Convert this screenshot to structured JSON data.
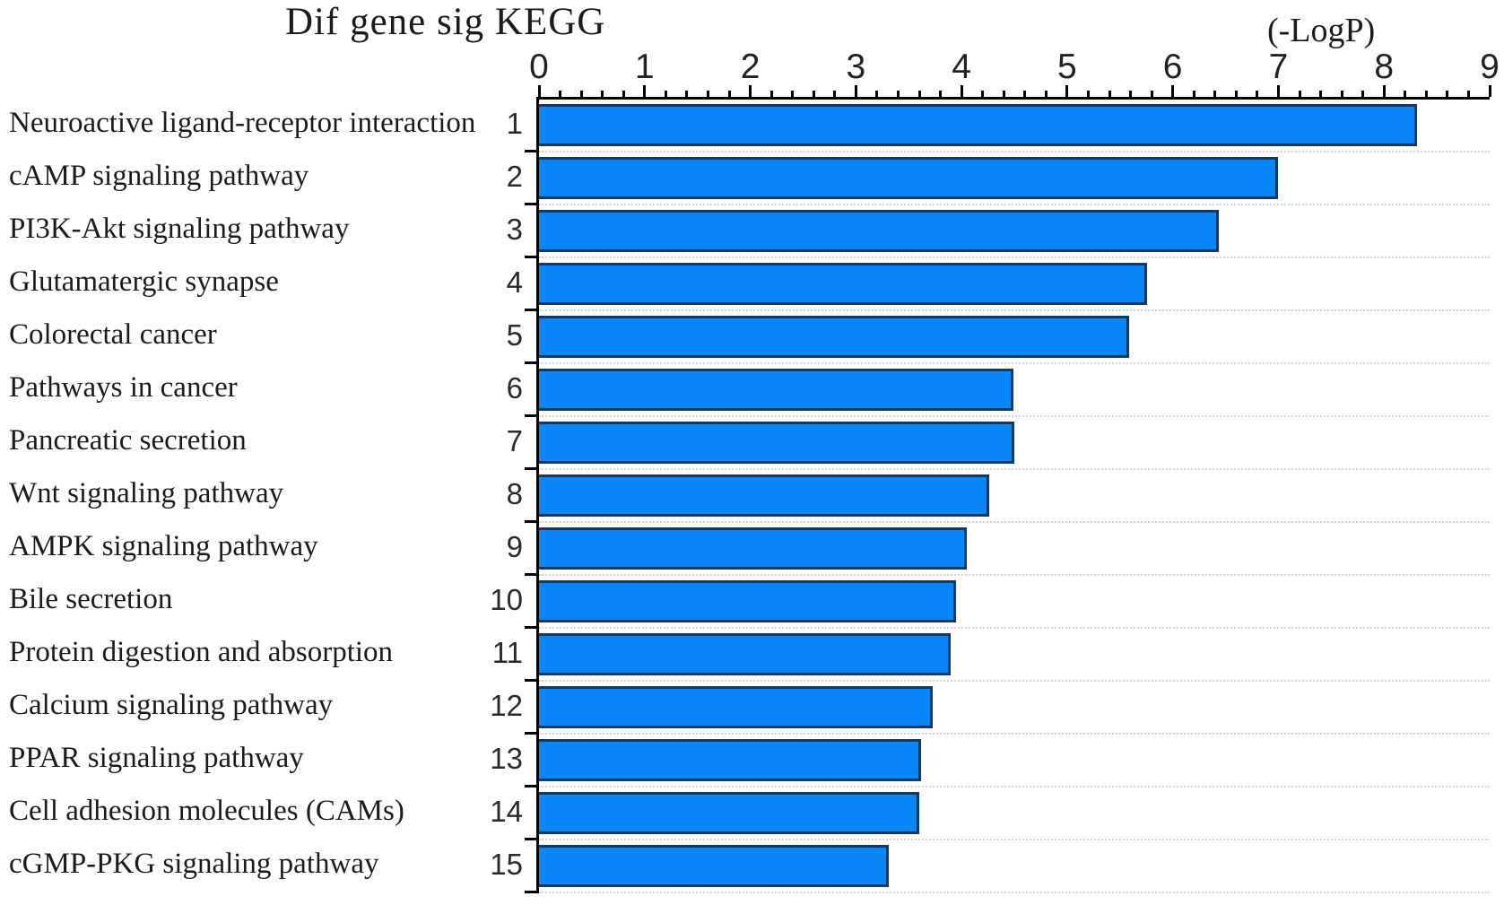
{
  "title": "Dif gene sig KEGG",
  "axis_unit_label": "(-LogP)",
  "chart_data": {
    "type": "bar",
    "orientation": "horizontal",
    "title": "Dif gene sig KEGG",
    "xlabel": "(-LogP)",
    "xlim": [
      0,
      9
    ],
    "x_major_tick_step": 1,
    "x_minor_tick_step": 0.2,
    "x_tick_labels": [
      "0",
      "1",
      "2",
      "3",
      "4",
      "5",
      "6",
      "7",
      "8",
      "9"
    ],
    "grid": "dotted horizontal row separators",
    "legend": "none",
    "bar_color": "#0986f8",
    "bar_border_color": "#15395e",
    "categories": [
      "Neuroactive ligand-receptor interaction",
      "cAMP signaling pathway",
      "PI3K-Akt signaling pathway",
      "Glutamatergic synapse",
      "Colorectal cancer",
      "Pathways in cancer",
      "Pancreatic secretion",
      "Wnt signaling pathway",
      "AMPK signaling pathway",
      "Bile secretion",
      "Protein digestion and absorption",
      "Calcium signaling pathway",
      "PPAR signaling pathway",
      "Cell adhesion molecules (CAMs)",
      "cGMP-PKG signaling pathway"
    ],
    "ranks": [
      "1",
      "2",
      "3",
      "4",
      "5",
      "6",
      "7",
      "8",
      "9",
      "10",
      "11",
      "12",
      "13",
      "14",
      "15"
    ],
    "values": [
      8.31,
      7.0,
      6.44,
      5.76,
      5.59,
      4.49,
      4.5,
      4.26,
      4.05,
      3.95,
      3.9,
      3.73,
      3.62,
      3.6,
      3.31
    ]
  }
}
